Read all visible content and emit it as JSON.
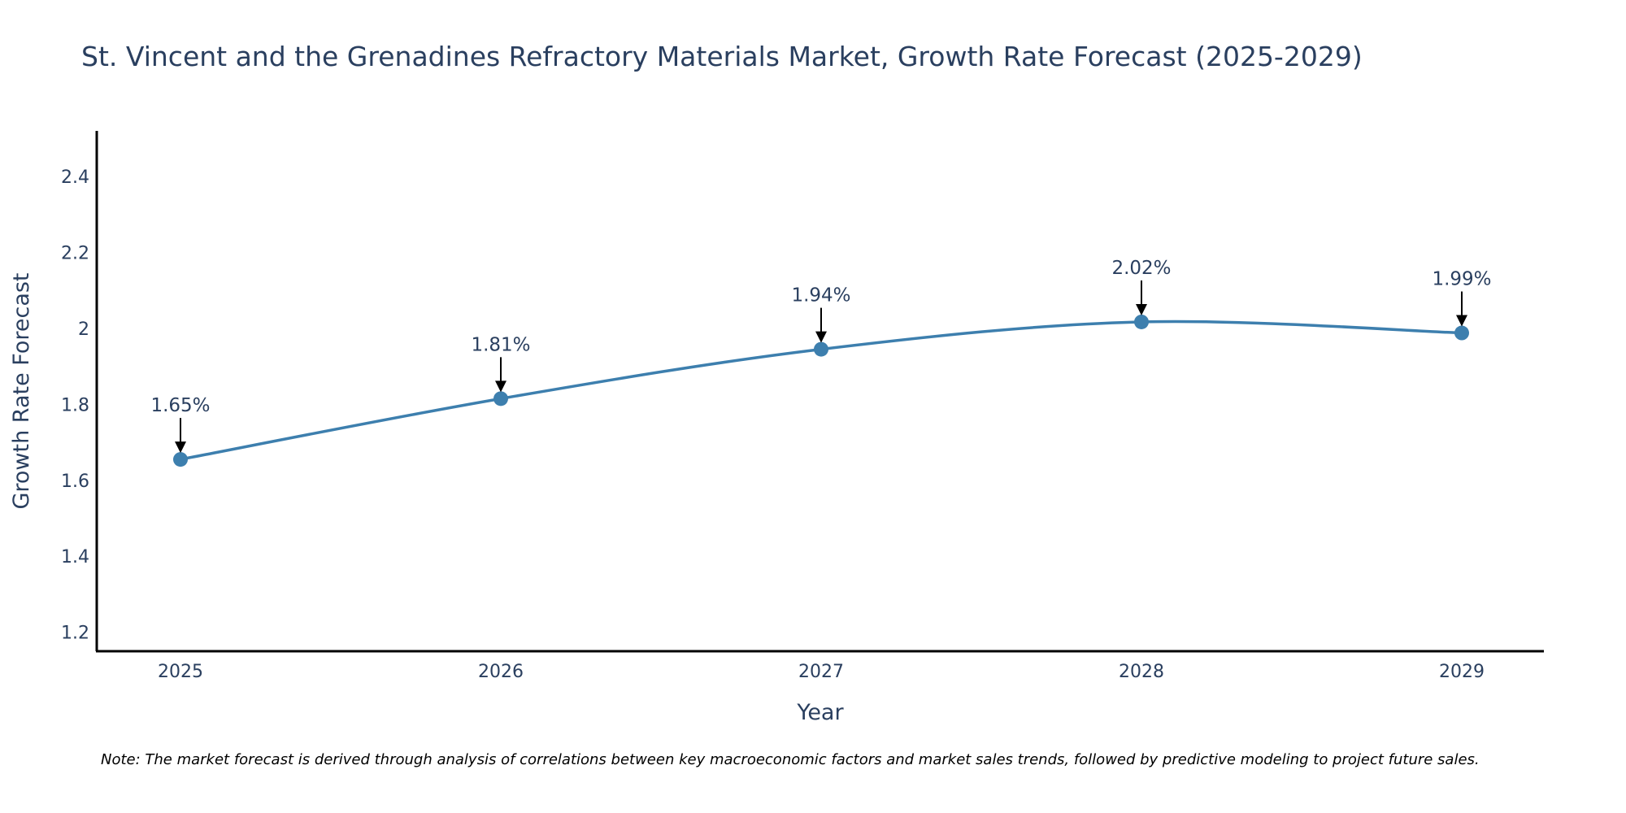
{
  "chart_data": {
    "type": "line",
    "title": "St. Vincent and the Grenadines Refractory Materials Market, Growth Rate Forecast (2025-2029)",
    "xlabel": "Year",
    "ylabel": "Growth Rate Forecast",
    "categories": [
      "2025",
      "2026",
      "2027",
      "2028",
      "2029"
    ],
    "values": [
      1.655,
      1.815,
      1.945,
      2.017,
      1.988
    ],
    "data_labels": [
      "1.65%",
      "1.81%",
      "1.94%",
      "2.02%",
      "1.99%"
    ],
    "ylim": [
      1.15,
      2.52
    ],
    "yticks": [
      1.2,
      1.4,
      1.6,
      1.8,
      2,
      2.2,
      2.4
    ],
    "ytick_labels": [
      "1.2",
      "1.4",
      "1.6",
      "1.8",
      "2",
      "2.2",
      "2.4"
    ],
    "grid": false,
    "line_shape": "spline",
    "line_color": "#3d7fae",
    "marker_color": "#3d7fae",
    "note": "Note: The market forecast is derived through analysis of correlations between key macroeconomic factors and market sales trends, followed by predictive modeling to project future sales."
  }
}
